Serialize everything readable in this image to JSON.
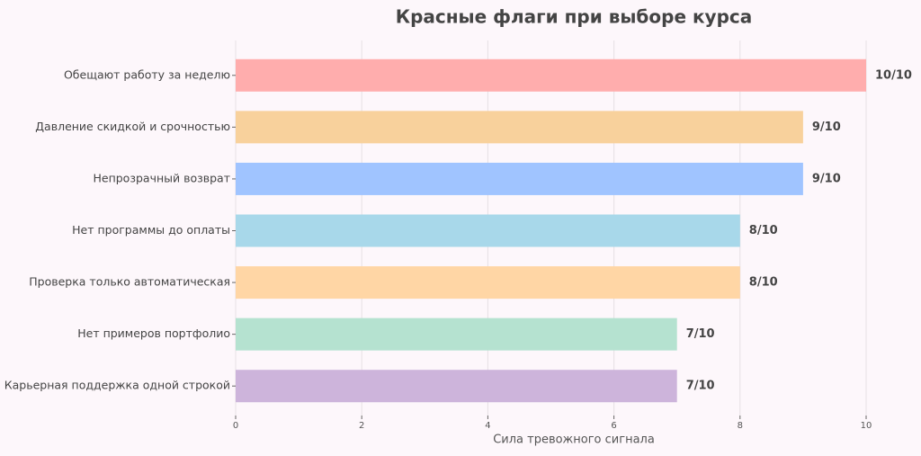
{
  "chart_data": {
    "type": "barh",
    "title": "Красные флаги при выборе курса",
    "categories": [
      "Обещают работу за неделю",
      "Давление скидкой и срочностью",
      "Непрозрачный возврат",
      "Нет программы до оплаты",
      "Проверка только автоматическая",
      "Нет примеров портфолио",
      "Карьерная поддержка одной строкой"
    ],
    "values": [
      10,
      9,
      9,
      8,
      8,
      7,
      7
    ],
    "value_labels": [
      "10/10",
      "9/10",
      "9/10",
      "8/10",
      "8/10",
      "7/10",
      "7/10"
    ],
    "colors": [
      "#ffadad",
      "#f8d19c",
      "#a0c4ff",
      "#a8d8ea",
      "#ffd6a5",
      "#b5e2d0",
      "#cdb4db"
    ],
    "xlabel": "Сила тревожного сигнала",
    "xlim": [
      0,
      10
    ],
    "xticks": [
      0,
      2,
      4,
      6,
      8,
      10
    ],
    "grid": true
  }
}
